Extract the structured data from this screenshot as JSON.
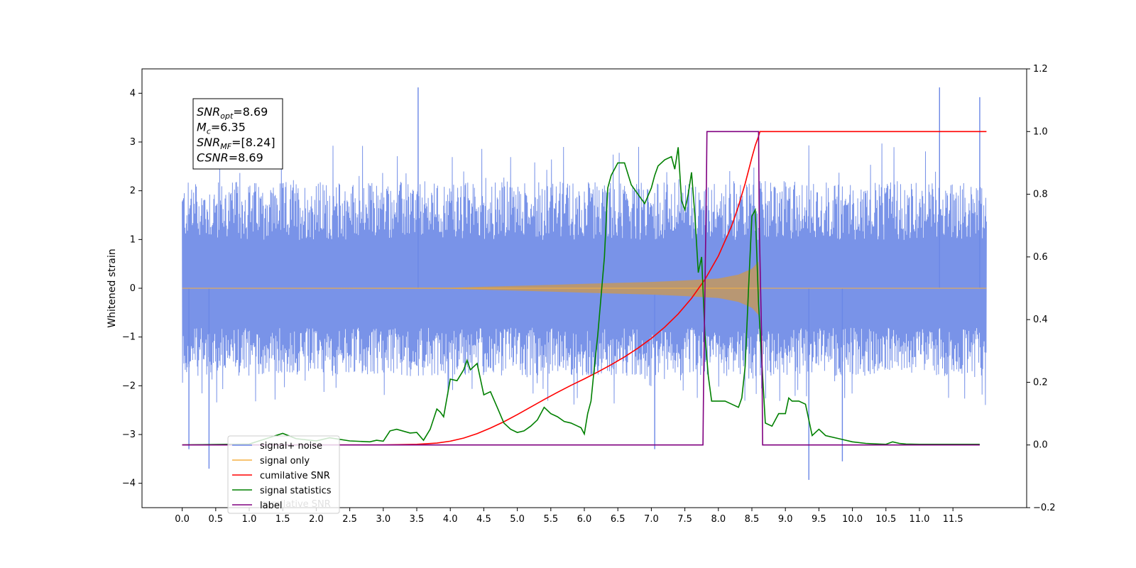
{
  "chart_data": {
    "type": "line",
    "ylabel": "Whitened strain",
    "xlim": [
      -0.6,
      12.6
    ],
    "ylim_left": [
      -4.5,
      4.5
    ],
    "ylim_right": [
      -0.2,
      1.2
    ],
    "x_ticks": [
      0.0,
      0.5,
      1.0,
      1.5,
      2.0,
      2.5,
      3.0,
      3.5,
      4.0,
      4.5,
      5.0,
      5.5,
      6.0,
      6.5,
      7.0,
      7.5,
      8.0,
      8.5,
      9.0,
      9.5,
      10.0,
      10.5,
      11.0,
      11.5
    ],
    "x_tick_labels": [
      "0.0",
      "0.5",
      "1.0",
      "1.5",
      "2.0",
      "2.5",
      "3.0",
      "3.5",
      "4.0",
      "4.5",
      "5.0",
      "5.5",
      "6.0",
      "6.5",
      "7.0",
      "7.5",
      "8.0",
      "8.5",
      "9.0",
      "9.5",
      "10.0",
      "10.5",
      "11.0",
      "11.5"
    ],
    "y_left_ticks": [
      4,
      3,
      2,
      1,
      0,
      -1,
      -2,
      -3,
      -4
    ],
    "y_left_tick_labels": [
      "4",
      "3",
      "2",
      "1",
      "0",
      "−1",
      "−2",
      "−3",
      "−4"
    ],
    "y_right_ticks": [
      1.2,
      1.0,
      0.8,
      0.6,
      0.4,
      0.2,
      0.0,
      -0.2
    ],
    "y_right_tick_labels": [
      "1.2",
      "1.0",
      "0.8",
      "0.6",
      "0.4",
      "0.2",
      "0.0",
      "−0.2"
    ],
    "info_box": [
      {
        "base": "SNR",
        "sub": "opt",
        "rest": "=8.69"
      },
      {
        "base": "M",
        "sub": "c",
        "rest": "=6.35"
      },
      {
        "base": "SNR",
        "sub": "MF",
        "rest": "=[8.24]"
      },
      {
        "base": "CSNR",
        "sub": "",
        "rest": "=8.69"
      }
    ],
    "noise_series": {
      "name": "signal+ noise",
      "color": "#6a87e6",
      "axis": "left",
      "x_range": [
        0.0,
        12.0
      ],
      "typical_envelope": [
        -1.8,
        2.2
      ],
      "notable_spikes": [
        {
          "x": 3.52,
          "y": 4.12
        },
        {
          "x": 11.3,
          "y": 4.12
        },
        {
          "x": 11.9,
          "y": 3.92
        },
        {
          "x": 9.35,
          "y": -3.93
        },
        {
          "x": 0.4,
          "y": -3.7
        },
        {
          "x": 9.85,
          "y": -3.55
        },
        {
          "x": 7.05,
          "y": -3.3
        },
        {
          "x": 0.1,
          "y": -3.3
        }
      ]
    },
    "signal_series": {
      "name": "signal only",
      "color": "#f5b042",
      "axis": "left",
      "envelope": [
        [
          0.0,
          0.0
        ],
        [
          4.0,
          0.01
        ],
        [
          4.5,
          0.03
        ],
        [
          5.0,
          0.05
        ],
        [
          5.5,
          0.07
        ],
        [
          6.0,
          0.09
        ],
        [
          6.5,
          0.11
        ],
        [
          7.0,
          0.13
        ],
        [
          7.5,
          0.16
        ],
        [
          8.0,
          0.2
        ],
        [
          8.3,
          0.28
        ],
        [
          8.5,
          0.4
        ],
        [
          8.6,
          0.55
        ],
        [
          8.62,
          0.0
        ],
        [
          12.0,
          0.0
        ]
      ]
    },
    "series": [
      {
        "name": "cumilative SNR",
        "color": "#ff0000",
        "axis": "right",
        "x": [
          0.0,
          3.0,
          3.5,
          3.8,
          4.0,
          4.2,
          4.4,
          4.6,
          4.8,
          5.0,
          5.2,
          5.4,
          5.6,
          5.8,
          6.0,
          6.2,
          6.4,
          6.6,
          6.8,
          7.0,
          7.2,
          7.4,
          7.6,
          7.8,
          8.0,
          8.2,
          8.3,
          8.4,
          8.5,
          8.55,
          8.6,
          8.62,
          12.0
        ],
        "y": [
          0.0,
          0.0,
          0.002,
          0.006,
          0.012,
          0.022,
          0.036,
          0.054,
          0.074,
          0.097,
          0.121,
          0.145,
          0.168,
          0.19,
          0.211,
          0.233,
          0.256,
          0.281,
          0.309,
          0.34,
          0.376,
          0.418,
          0.468,
          0.528,
          0.603,
          0.7,
          0.762,
          0.834,
          0.917,
          0.955,
          0.985,
          1.0,
          1.0
        ]
      },
      {
        "name": "signal statistics",
        "color": "#008000",
        "axis": "right",
        "x": [
          0.0,
          1.0,
          1.5,
          1.7,
          2.0,
          2.2,
          2.5,
          2.8,
          2.9,
          3.0,
          3.1,
          3.2,
          3.4,
          3.5,
          3.6,
          3.7,
          3.8,
          3.85,
          3.9,
          4.0,
          4.1,
          4.2,
          4.25,
          4.3,
          4.4,
          4.45,
          4.5,
          4.6,
          4.7,
          4.8,
          4.9,
          5.0,
          5.1,
          5.2,
          5.3,
          5.4,
          5.5,
          5.6,
          5.7,
          5.8,
          5.9,
          5.95,
          6.0,
          6.05,
          6.1,
          6.15,
          6.2,
          6.3,
          6.35,
          6.4,
          6.5,
          6.6,
          6.7,
          6.8,
          6.9,
          7.0,
          7.05,
          7.1,
          7.2,
          7.3,
          7.35,
          7.4,
          7.45,
          7.5,
          7.55,
          7.6,
          7.65,
          7.7,
          7.75,
          7.8,
          7.85,
          7.9,
          8.0,
          8.1,
          8.2,
          8.3,
          8.35,
          8.4,
          8.45,
          8.5,
          8.55,
          8.6,
          8.7,
          8.8,
          8.9,
          9.0,
          9.05,
          9.1,
          9.2,
          9.3,
          9.4,
          9.5,
          9.6,
          9.8,
          10.0,
          10.2,
          10.4,
          10.5,
          10.6,
          10.7,
          10.8,
          11.0,
          11.2,
          11.5,
          11.9
        ],
        "y": [
          0.0,
          0.003,
          0.037,
          0.02,
          0.013,
          0.023,
          0.013,
          0.01,
          0.015,
          0.012,
          0.045,
          0.05,
          0.038,
          0.04,
          0.015,
          0.05,
          0.115,
          0.105,
          0.09,
          0.21,
          0.205,
          0.24,
          0.27,
          0.24,
          0.26,
          0.21,
          0.16,
          0.17,
          0.12,
          0.07,
          0.05,
          0.04,
          0.045,
          0.06,
          0.08,
          0.12,
          0.1,
          0.09,
          0.075,
          0.07,
          0.06,
          0.055,
          0.035,
          0.1,
          0.14,
          0.25,
          0.35,
          0.6,
          0.82,
          0.86,
          0.9,
          0.9,
          0.83,
          0.8,
          0.77,
          0.82,
          0.86,
          0.89,
          0.91,
          0.92,
          0.88,
          0.95,
          0.78,
          0.75,
          0.8,
          0.87,
          0.73,
          0.55,
          0.6,
          0.35,
          0.22,
          0.14,
          0.14,
          0.14,
          0.13,
          0.12,
          0.15,
          0.25,
          0.5,
          0.73,
          0.75,
          0.45,
          0.07,
          0.06,
          0.1,
          0.1,
          0.15,
          0.14,
          0.14,
          0.13,
          0.03,
          0.05,
          0.03,
          0.02,
          0.01,
          0.005,
          0.003,
          0.002,
          0.01,
          0.005,
          0.003,
          0.002,
          0.002,
          0.002,
          0.002
        ]
      },
      {
        "name": "label",
        "color": "#800080",
        "axis": "right",
        "x": [
          0.0,
          7.77,
          7.78,
          7.82,
          7.83,
          8.6,
          8.61,
          8.65,
          8.66,
          11.9
        ],
        "y": [
          0.0,
          0.0,
          0.2,
          0.8,
          1.0,
          1.0,
          0.7,
          0.3,
          0.0,
          0.0
        ]
      }
    ],
    "legend": {
      "location": "lower-left",
      "entries": [
        {
          "name": "signal+ noise",
          "color": "#6a87e6"
        },
        {
          "name": "signal only",
          "color": "#f5b042"
        },
        {
          "name": "cumilative SNR",
          "color": "#ff0000"
        },
        {
          "name": "signal statistics",
          "color": "#008000"
        },
        {
          "name": "label",
          "color": "#800080"
        }
      ],
      "ghost_text": "cumilative SNR"
    }
  }
}
